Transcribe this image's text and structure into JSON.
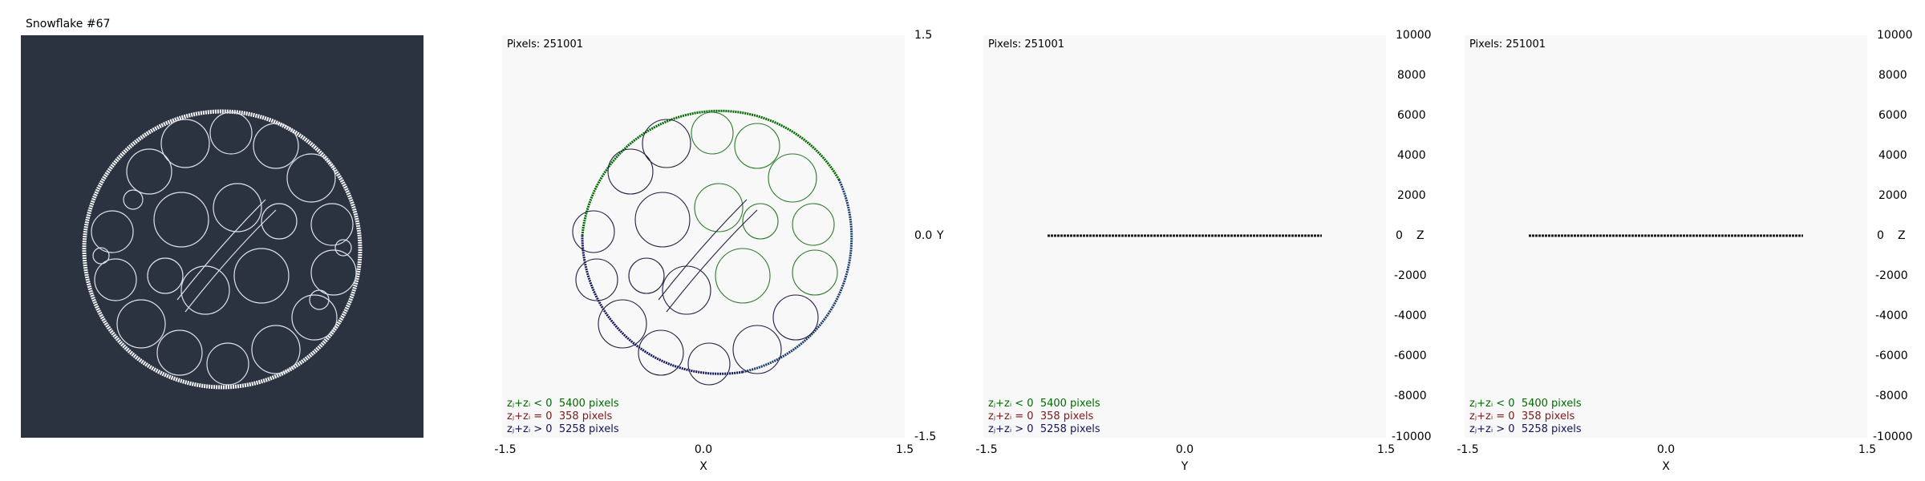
{
  "main": {
    "title": "Snowflake #67"
  },
  "panels": [
    {
      "pixels_label": "Pixels: 251001",
      "legend": {
        "neg": {
          "label": "zⱼ+zᵢ < 0",
          "count": "5400 pixels"
        },
        "zero": {
          "label": "zⱼ+zᵢ = 0",
          "count": "358 pixels"
        },
        "pos": {
          "label": "zⱼ+zᵢ > 0",
          "count": "5258 pixels"
        }
      },
      "x_ticks": [
        "-1.5",
        "0.0",
        "1.5"
      ],
      "x_label": "X",
      "y_ticks": [
        "1.5",
        "0.0",
        "-1.5"
      ],
      "y_label": "Y"
    },
    {
      "pixels_label": "Pixels: 251001",
      "legend": {
        "neg": {
          "label": "zⱼ+zᵢ < 0",
          "count": "5400 pixels"
        },
        "zero": {
          "label": "zⱼ+zᵢ = 0",
          "count": "358 pixels"
        },
        "pos": {
          "label": "zⱼ+zᵢ > 0",
          "count": "5258 pixels"
        }
      },
      "x_ticks": [
        "-1.5",
        "0.0",
        "1.5"
      ],
      "x_label": "Y",
      "y_ticks": [
        "10000",
        "8000",
        "6000",
        "4000",
        "2000",
        "0",
        "-2000",
        "-4000",
        "-6000",
        "-8000",
        "-10000"
      ],
      "y_label": "Z"
    },
    {
      "pixels_label": "Pixels: 251001",
      "legend": {
        "neg": {
          "label": "zⱼ+zᵢ < 0",
          "count": "5400 pixels"
        },
        "zero": {
          "label": "zⱼ+zᵢ = 0",
          "count": "358 pixels"
        },
        "pos": {
          "label": "zⱼ+zᵢ > 0",
          "count": "5258 pixels"
        }
      },
      "x_ticks": [
        "-1.5",
        "0.0",
        "1.5"
      ],
      "x_label": "X",
      "y_ticks": [
        "10000",
        "8000",
        "6000",
        "4000",
        "2000",
        "0",
        "-2000",
        "-4000",
        "-6000",
        "-8000",
        "-10000"
      ],
      "y_label": "Z"
    }
  ],
  "colors": {
    "main_bg": "#2b3340",
    "plot_bg": "#f8f8f8",
    "neg": "#006a00",
    "zero": "#7a1a1a",
    "pos": "#14145a"
  }
}
